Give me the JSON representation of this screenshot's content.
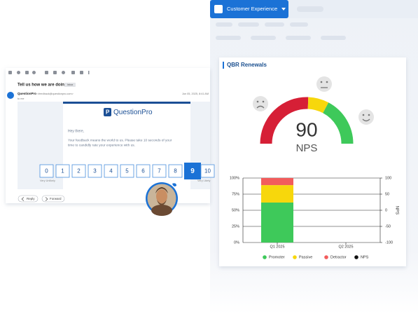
{
  "app": {
    "dropdown": "Customer Experience"
  },
  "email": {
    "subject": "Tell us how we are doing!",
    "tag": "Inbox",
    "sender_name": "QuestionPro",
    "sender_email": "<feedback@questionpro.com>",
    "recipient": "to me",
    "date": "Jun 05, 2025, 8:41 AM",
    "logo": "QuestionPro",
    "greeting": "Hey there,",
    "body_lines": [
      "Your feedback means the world to us. Please take 10 seconds of your",
      "time to candidly rate your experience with us."
    ],
    "scale": [
      0,
      1,
      2,
      3,
      4,
      5,
      6,
      7,
      8,
      9,
      10
    ],
    "selected": 9,
    "low_label": "Very Unlikely",
    "high_label": "Very Likely",
    "reply": "Reply",
    "forward": "Forward"
  },
  "dashboard": {
    "title": "QBR Renewals",
    "gauge": {
      "value": 90,
      "label": "NPS"
    }
  },
  "chart_data": {
    "type": "bar",
    "stacked": true,
    "categories": [
      "Q1 2025",
      "Q2 2025"
    ],
    "series": [
      {
        "name": "Promoter",
        "color": "#3ec95a",
        "values": [
          62,
          null
        ]
      },
      {
        "name": "Passive",
        "color": "#f7d70c",
        "values": [
          27,
          null
        ]
      },
      {
        "name": "Detractor",
        "color": "#f25c5c",
        "values": [
          11,
          null
        ]
      },
      {
        "name": "NPS",
        "color": "#111111",
        "axis": "y2",
        "values": [
          null,
          null
        ]
      }
    ],
    "ylim": [
      0,
      100
    ],
    "yticks": [
      {
        "value": 0,
        "label": "0%"
      },
      {
        "value": 25,
        "label": "25%"
      },
      {
        "value": 50,
        "label": "50%"
      },
      {
        "value": 75,
        "label": "75%"
      },
      {
        "value": 100,
        "label": "100%"
      }
    ],
    "y2lim": [
      -100,
      100
    ],
    "y2ticks": [
      -100,
      -50,
      0,
      50,
      100
    ],
    "y2label": "NPS",
    "grid": true
  }
}
